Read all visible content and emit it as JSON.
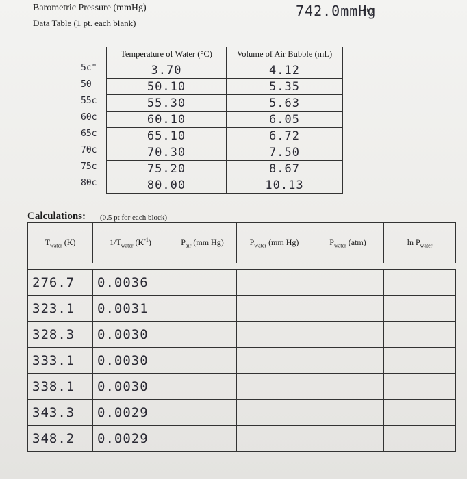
{
  "header": {
    "pressure_label": "Barometric Pressure (mmHg)",
    "pressure_value": "742.0mmHg",
    "points_note": "pt.)",
    "data_table_title": "Data Table (1 pt. each blank)"
  },
  "data_table": {
    "columns": [
      "Temperature of Water (°C)",
      "Volume of Air Bubble (mL)"
    ],
    "margin_notes": [
      "5c°",
      "50",
      "55c",
      "60c",
      "65c",
      "70c",
      "75c",
      "80c"
    ],
    "rows": [
      [
        "3.70",
        "4.12"
      ],
      [
        "50.10",
        "5.35"
      ],
      [
        "55.30",
        "5.63"
      ],
      [
        "60.10",
        "6.05"
      ],
      [
        "65.10",
        "6.72"
      ],
      [
        "70.30",
        "7.50"
      ],
      [
        "75.20",
        "8.67"
      ],
      [
        "80.00",
        "10.13"
      ]
    ]
  },
  "calculations": {
    "title": "Calculations:",
    "note": "(0.5 pt for each block)",
    "columns": [
      [
        {
          "text": "T"
        },
        {
          "text": "water",
          "style": "sub"
        },
        {
          "text": " (K)"
        }
      ],
      [
        {
          "text": "1/T"
        },
        {
          "text": "water",
          "style": "sub"
        },
        {
          "text": " (K"
        },
        {
          "text": "-1",
          "style": "sup"
        },
        {
          "text": ")"
        }
      ],
      [
        {
          "text": "P"
        },
        {
          "text": "air",
          "style": "sub"
        },
        {
          "text": " (mm Hg)"
        }
      ],
      [
        {
          "text": "P"
        },
        {
          "text": "water",
          "style": "sub"
        },
        {
          "text": " (mm Hg)"
        }
      ],
      [
        {
          "text": "P"
        },
        {
          "text": "water",
          "style": "sub"
        },
        {
          "text": " (atm)"
        }
      ],
      [
        {
          "text": "ln P"
        },
        {
          "text": "water",
          "style": "sub"
        }
      ]
    ],
    "rows": [
      [
        "276.7",
        "0.0036"
      ],
      [
        "323.1",
        "0.0031"
      ],
      [
        "328.3",
        "0.0030"
      ],
      [
        "333.1",
        "0.0030"
      ],
      [
        "338.1",
        "0.0030"
      ],
      [
        "343.3",
        "0.0029"
      ],
      [
        "348.2",
        "0.0029"
      ]
    ]
  }
}
